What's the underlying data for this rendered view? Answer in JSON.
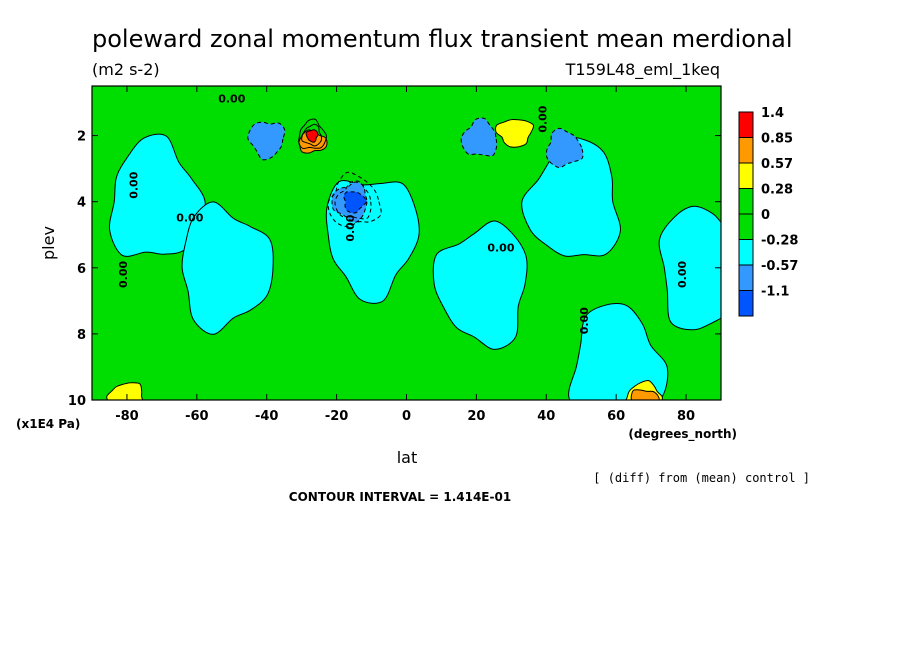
{
  "chart_data": {
    "type": "heatmap",
    "title": "poleward zonal momentum flux transient mean merdional",
    "units": "(m2 s-2)",
    "dataset": "T159L48_eml_1keq",
    "xlabel": "lat",
    "xunits": "(degrees_north)",
    "ylabel": "plev",
    "yunits": "(x1E4 Pa)",
    "xlim": [
      -90,
      90
    ],
    "ylim": [
      10,
      0.5
    ],
    "xticks": [
      -80,
      -60,
      -40,
      -20,
      0,
      20,
      40,
      60,
      80
    ],
    "xtick_labels": [
      "-80",
      "-60",
      "-40",
      "-20",
      "0",
      "20",
      "40",
      "60",
      "80"
    ],
    "yticks": [
      2,
      4,
      6,
      8,
      10
    ],
    "ytick_labels": [
      "2",
      "4",
      "6",
      "8",
      "10"
    ],
    "note": "[ (diff) from (mean) control ]",
    "contour_interval": "CONTOUR INTERVAL = 1.414E-01",
    "contour_label": "0.00",
    "background_level": "0 to 0.28 (green)",
    "legend_position": "right",
    "colorbar": {
      "labels": [
        "1.4",
        "0.85",
        "0.57",
        "0.28",
        "0",
        "-0.28",
        "-0.57",
        "-1.1"
      ],
      "colors": [
        "#ff0000",
        "#ff9900",
        "#ffff00",
        "#00dd00",
        "#00dd00",
        "#00ffff",
        "#3399ff",
        "#0055ff"
      ]
    },
    "features": [
      {
        "level": "-0.28 to 0",
        "lat": -72,
        "plev": 4.0
      },
      {
        "level": "-0.28 to 0",
        "lat": -52,
        "plev": 6.0
      },
      {
        "level": "-0.28 to 0",
        "lat": -10,
        "plev": 5.0
      },
      {
        "level": "-0.28 to 0",
        "lat": 22,
        "plev": 6.5
      },
      {
        "level": "-0.28 to 0",
        "lat": 48,
        "plev": 4.0
      },
      {
        "level": "-0.28 to 0",
        "lat": 60,
        "plev": 9.0
      },
      {
        "level": "-0.28 to 0",
        "lat": 85,
        "plev": 6.0
      },
      {
        "level": "-0.57 to -0.28",
        "lat": -40,
        "plev": 2.1
      },
      {
        "level": "-0.57 to -0.28",
        "lat": -16,
        "plev": 4.0
      },
      {
        "level": "-0.57 to -0.28",
        "lat": 21,
        "plev": 2.1
      },
      {
        "level": "-0.57 to -0.28",
        "lat": 45,
        "plev": 2.4
      },
      {
        "level": "-1.1 to -0.57",
        "lat": -15,
        "plev": 4.0
      },
      {
        "level": "0.28 to 0.57",
        "lat": 31,
        "plev": 1.9
      },
      {
        "level": "0.28 to 0.57",
        "lat": -80,
        "plev": 9.9
      },
      {
        "level": "0.28 to 0.57",
        "lat": 68,
        "plev": 9.9
      },
      {
        "level": "0.57 to 0.85",
        "lat": -27,
        "plev": 2.2
      },
      {
        "level": "0.57 to 0.85",
        "lat": 68,
        "plev": 10.0
      },
      {
        "level": ">1.4",
        "lat": -27,
        "plev": 2.0
      }
    ]
  }
}
